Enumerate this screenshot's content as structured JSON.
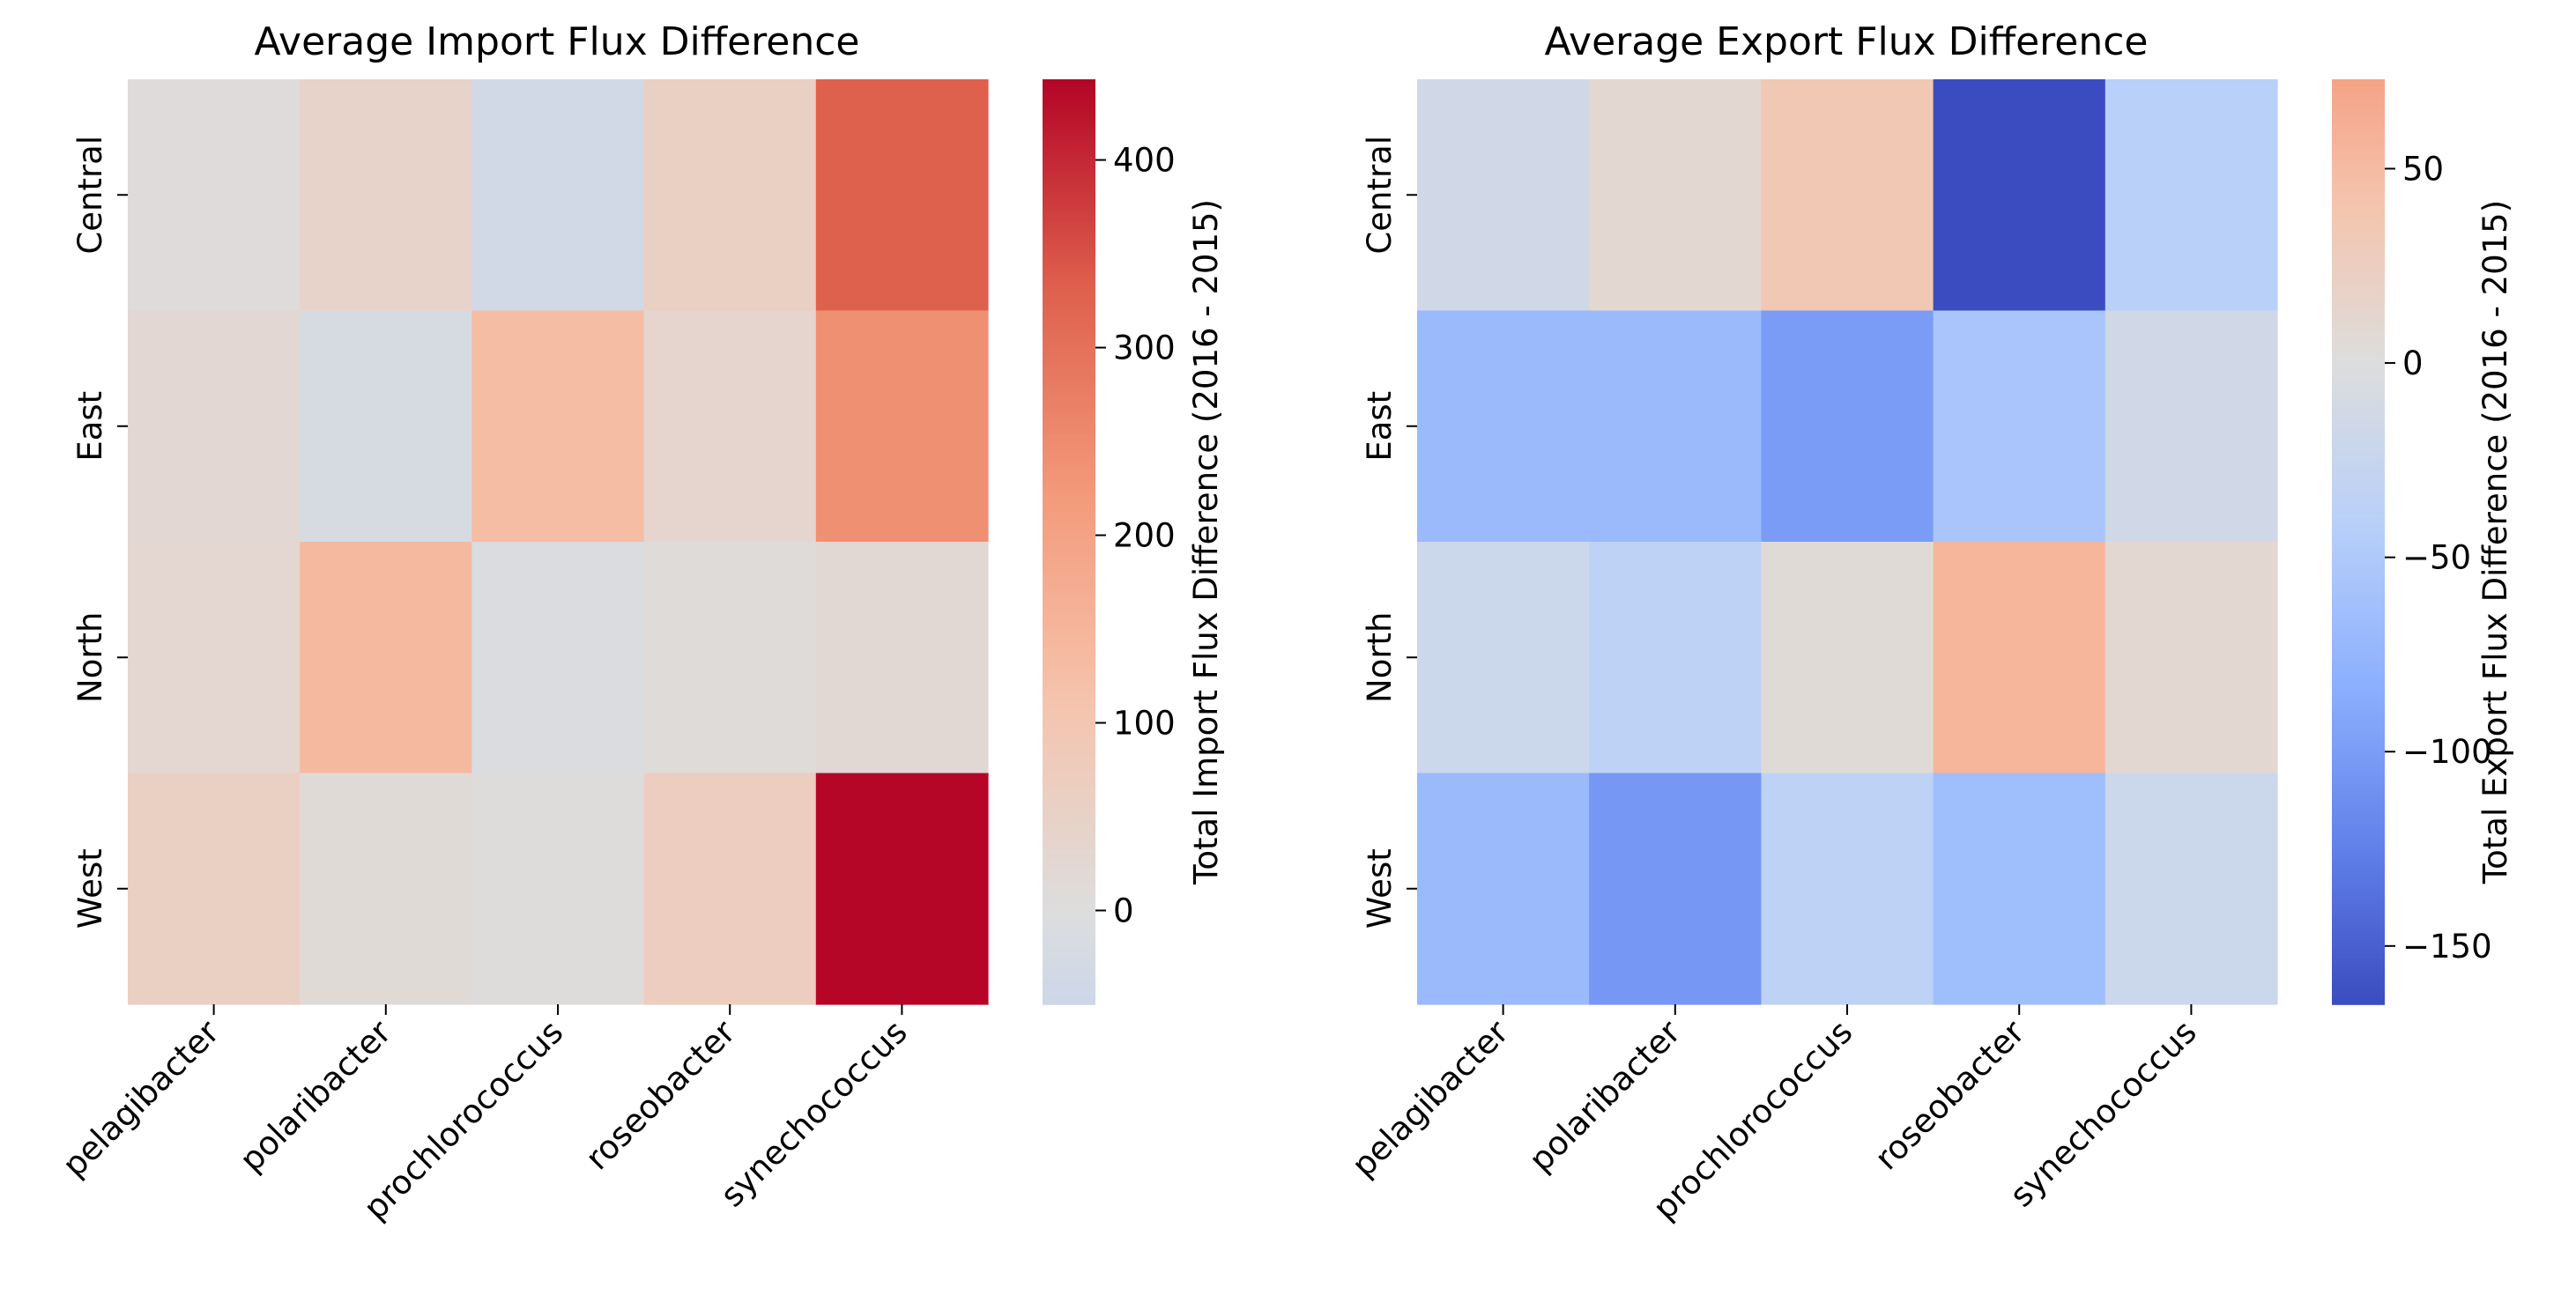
{
  "chart_data": [
    {
      "type": "heatmap",
      "title": "Average Import Flux Difference",
      "xlabel": "",
      "ylabel": "",
      "x": [
        "pelagibacter",
        "polaribacter",
        "prochlorococcus",
        "roseobacter",
        "synechococcus"
      ],
      "y": [
        "Central",
        "East",
        "North",
        "West"
      ],
      "values": [
        [
          8,
          45,
          -35,
          60,
          330
        ],
        [
          25,
          -20,
          130,
          35,
          240
        ],
        [
          30,
          140,
          -10,
          10,
          20
        ],
        [
          60,
          15,
          5,
          70,
          440
        ]
      ],
      "colorbar": {
        "label": "Total Import Flux Difference (2016 - 2015)",
        "range": [
          -50,
          443
        ],
        "ticks": [
          0,
          100,
          200,
          300,
          400
        ],
        "tick_labels": [
          "0",
          "100",
          "200",
          "300",
          "400"
        ],
        "center": 0,
        "colormap": "coolwarm"
      },
      "grid": false
    },
    {
      "type": "heatmap",
      "title": "Average Export Flux Difference",
      "xlabel": "",
      "ylabel": "",
      "x": [
        "pelagibacter",
        "polaribacter",
        "prochlorococcus",
        "roseobacter",
        "synechococcus"
      ],
      "y": [
        "Central",
        "East",
        "North",
        "West"
      ],
      "values": [
        [
          -15,
          10,
          35,
          -165,
          -40
        ],
        [
          -70,
          -70,
          -100,
          -55,
          -15
        ],
        [
          -20,
          -35,
          5,
          55,
          10
        ],
        [
          -70,
          -105,
          -35,
          -65,
          -20
        ]
      ],
      "colorbar": {
        "label": "Total Export Flux Difference (2016 - 2015)",
        "range": [
          -165,
          73
        ],
        "ticks": [
          50,
          0,
          -50,
          -100,
          -150
        ],
        "tick_labels": [
          "50",
          "0",
          "−50",
          "−100",
          "−150"
        ],
        "center": 0,
        "colormap": "coolwarm"
      },
      "grid": false
    }
  ]
}
